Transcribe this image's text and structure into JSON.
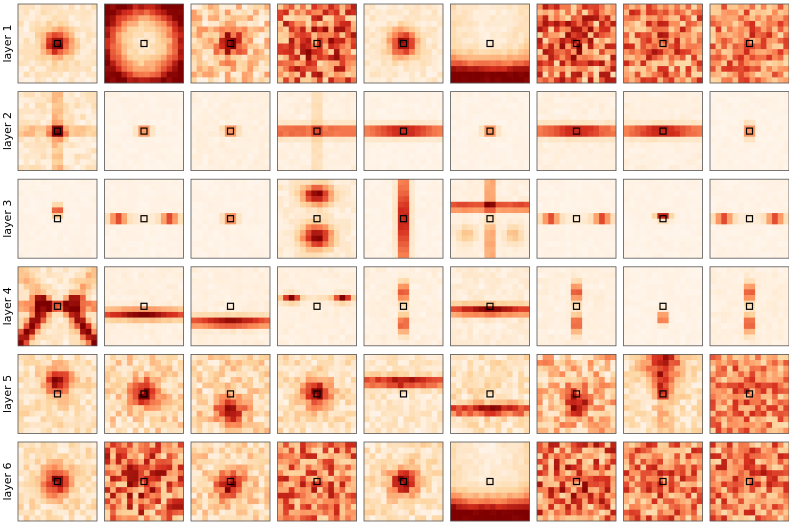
{
  "row_labels": [
    "layer 1",
    "layer 2",
    "layer 3",
    "layer 4",
    "layer 5",
    "layer 6"
  ]
}
